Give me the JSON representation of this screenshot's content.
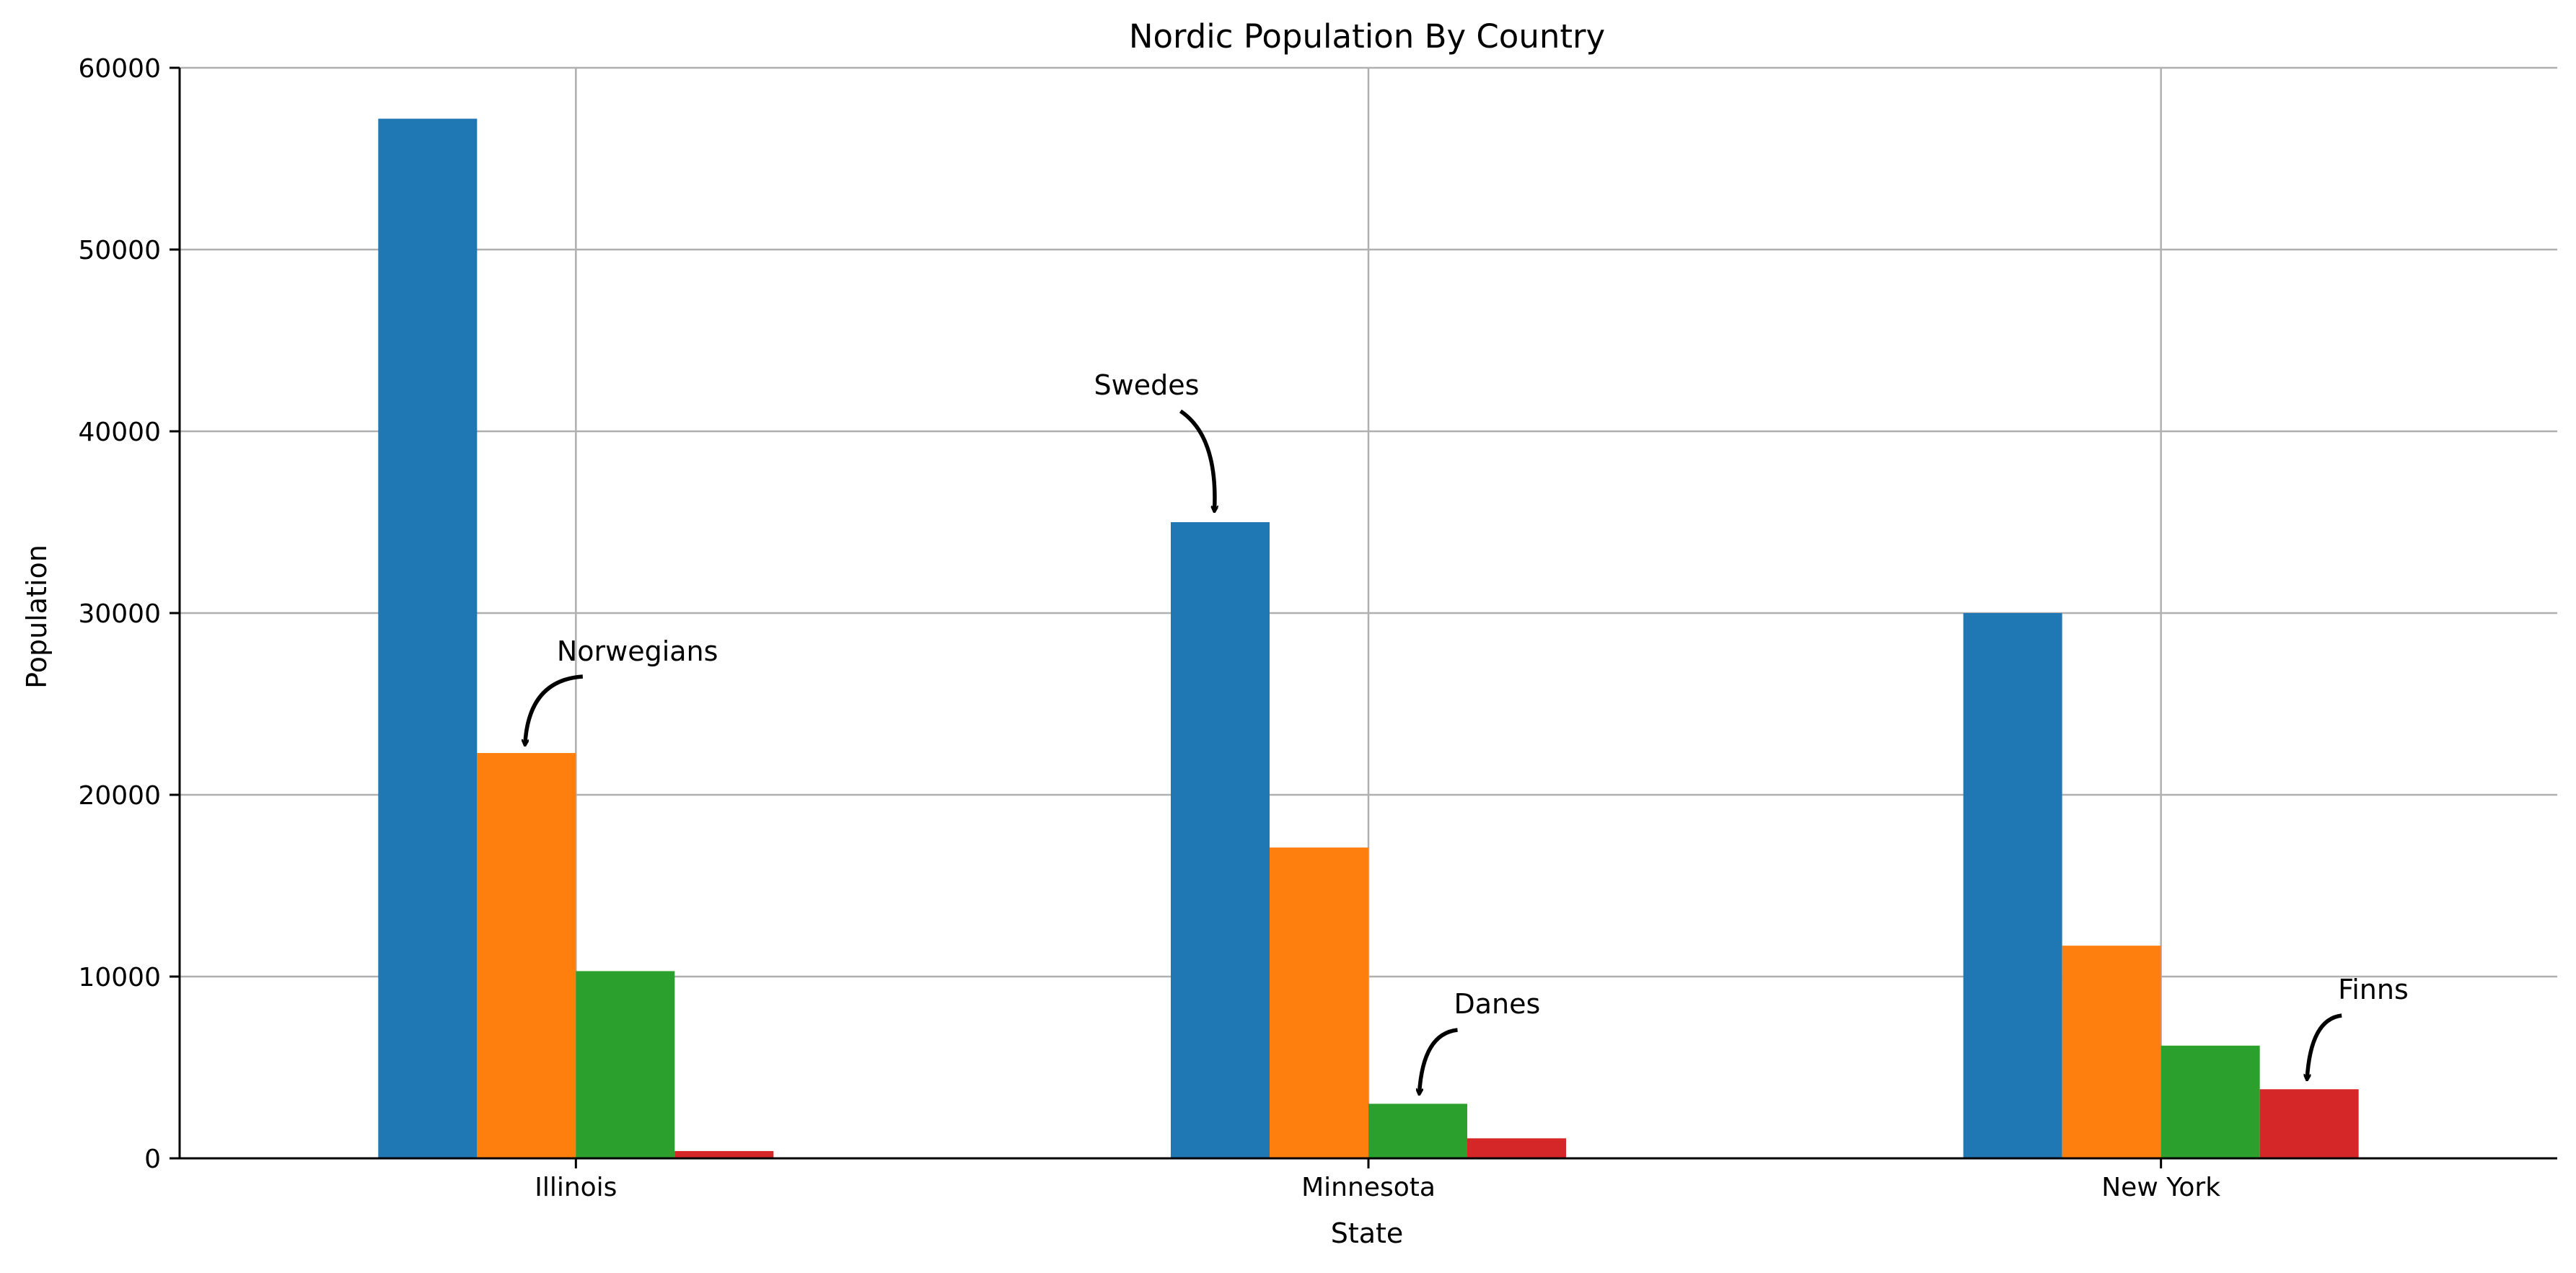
{
  "chart_data": {
    "type": "bar",
    "title": "Nordic Population By Country",
    "xlabel": "State",
    "ylabel": "Population",
    "categories": [
      "Illinois",
      "Minnesota",
      "New York"
    ],
    "series": [
      {
        "values": [
          57200,
          35000,
          30000
        ],
        "color": "#1f77b4"
      },
      {
        "values": [
          22300,
          17100,
          11700
        ],
        "color": "#ff7f0e"
      },
      {
        "values": [
          10300,
          3000,
          6200
        ],
        "color": "#2ca02c"
      },
      {
        "values": [
          400,
          1100,
          3800
        ],
        "color": "#d62728"
      }
    ],
    "ylim": [
      0,
      60000
    ],
    "yticks": [
      "0",
      "10000",
      "20000",
      "30000",
      "40000",
      "50000",
      "60000"
    ],
    "grid": true,
    "legend": "none",
    "annotations": [
      {
        "text": "Norwegians",
        "category": "Illinois",
        "series_index": 1
      },
      {
        "text": "Swedes",
        "category": "Minnesota",
        "series_index": 0
      },
      {
        "text": "Danes",
        "category": "Minnesota",
        "series_index": 2
      },
      {
        "text": "Finns",
        "category": "New York",
        "series_index": 3
      }
    ]
  }
}
